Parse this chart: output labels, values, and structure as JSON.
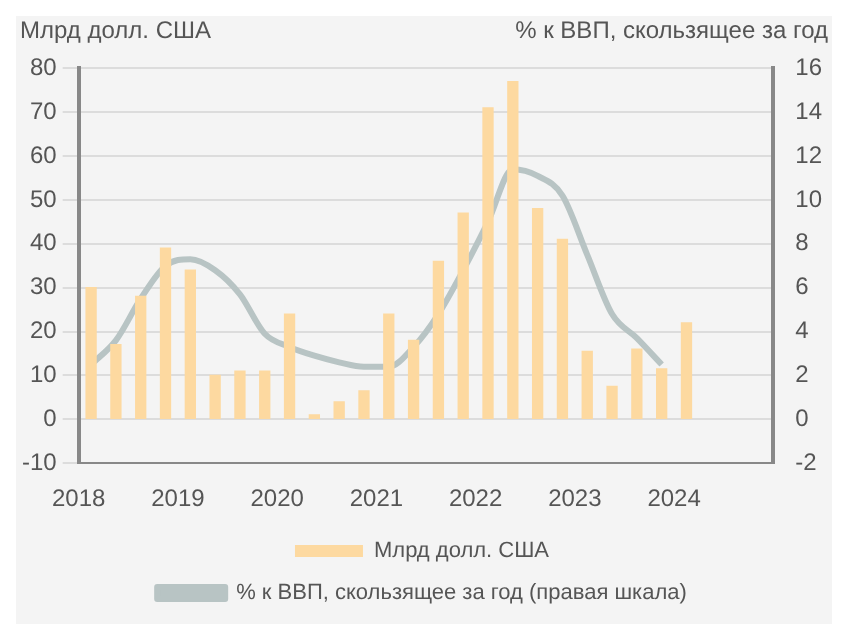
{
  "chart_data": {
    "type": "bar",
    "ylabel": "Млрд долл. США",
    "y2label": "% к ВВП, скользящее за год",
    "x": [
      2018.125,
      2018.375,
      2018.625,
      2018.875,
      2019.125,
      2019.375,
      2019.625,
      2019.875,
      2020.125,
      2020.375,
      2020.625,
      2020.875,
      2021.125,
      2021.375,
      2021.625,
      2021.875,
      2022.125,
      2022.375,
      2022.625,
      2022.875,
      2023.125,
      2023.375,
      2023.625,
      2023.875,
      2024.125
    ],
    "xlim": [
      2018,
      2025
    ],
    "xticks": [
      2018,
      2019,
      2020,
      2021,
      2022,
      2023,
      2024
    ],
    "ylim": [
      -10,
      80
    ],
    "yticks": [
      -10,
      0,
      10,
      20,
      30,
      40,
      50,
      60,
      70,
      80
    ],
    "y2lim": [
      -2,
      16
    ],
    "y2ticks": [
      -2,
      0,
      2,
      4,
      6,
      8,
      10,
      12,
      14,
      16
    ],
    "series": [
      {
        "name": "Млрд долл. США",
        "color": "#fdd9a0",
        "values": [
          30,
          17,
          28,
          39,
          34,
          10,
          11,
          11,
          24,
          1,
          4,
          6.5,
          24,
          18,
          36,
          47,
          71,
          77,
          48,
          41,
          15.5,
          7.5,
          16,
          11.5,
          22
        ]
      },
      {
        "name": "% к ВВП, скользящее за год (правая шкала)",
        "type": "line",
        "axis": "y2",
        "color": "#b8c4c4",
        "values": [
          2.5,
          3.6,
          5.5,
          7.0,
          7.3,
          6.8,
          5.7,
          3.9,
          3.3,
          2.9,
          2.6,
          2.4,
          2.4,
          3.3,
          4.8,
          6.8,
          9.0,
          11.4,
          11.1,
          10.2,
          7.5,
          4.8,
          3.7,
          2.5,
          null
        ]
      }
    ],
    "grid": "y",
    "legend": "bottom",
    "marker": "none"
  }
}
